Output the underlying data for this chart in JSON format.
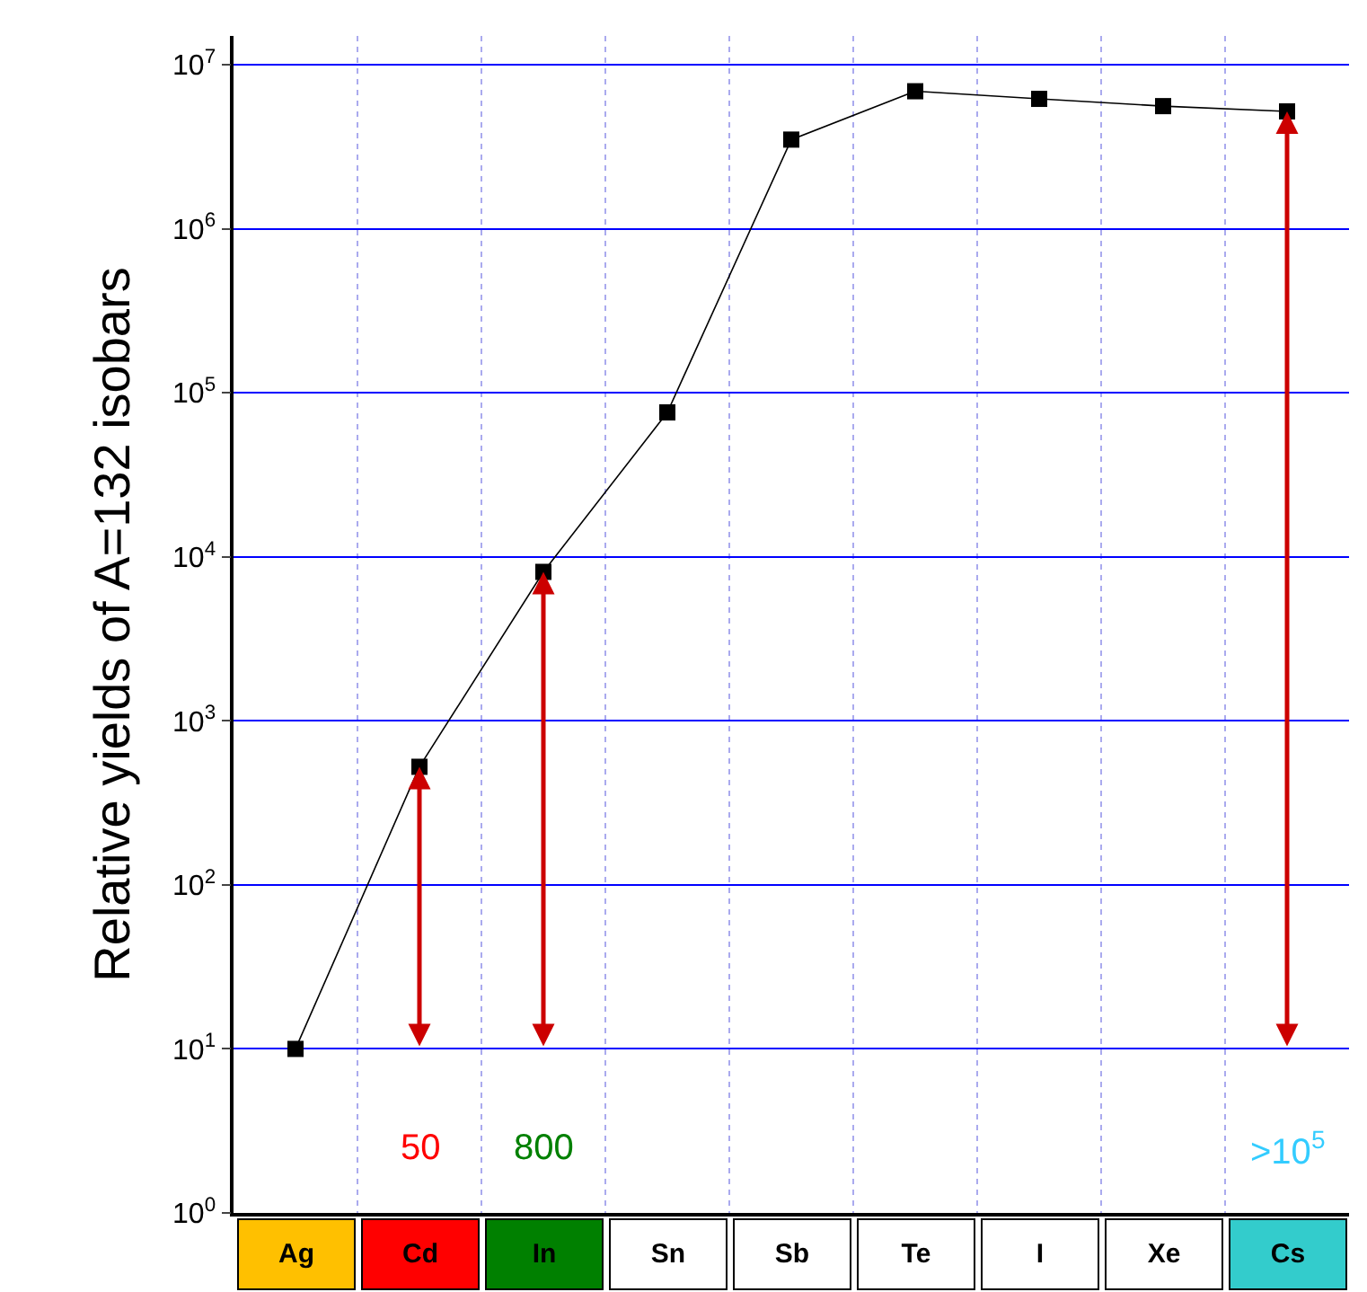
{
  "chart_data": {
    "type": "line",
    "ylabel": "Relative yields of A=132 isobars",
    "categories": [
      "Ag",
      "Cd",
      "In",
      "Sn",
      "Sb",
      "Te",
      "I",
      "Xe",
      "Cs"
    ],
    "series": [
      {
        "color": "#000000",
        "values": [
          10,
          525,
          8100,
          76000,
          3500000,
          6900000,
          6200000,
          5600000,
          5200000
        ]
      }
    ],
    "log": true,
    "ylim": [
      1,
      15000000
    ],
    "yticks": [
      {
        "value": 1,
        "label": "10$^{0}$"
      },
      {
        "value": 10,
        "label": "10$^{1}$"
      },
      {
        "value": 100,
        "label": "10$^{2}$"
      },
      {
        "value": 1000,
        "label": "10$^{3}$"
      },
      {
        "value": 10000,
        "label": "10$^{4}$"
      },
      {
        "value": 100000,
        "label": "10$^{5}$"
      },
      {
        "value": 1000000,
        "label": "10$^{6}$"
      },
      {
        "value": 10000000,
        "label": "10$^{7}$"
      }
    ],
    "grid": true,
    "marker": "square",
    "line_style": "solid",
    "annotations": [
      "50",
      "800",
      ">10$^{5}$"
    ]
  }
}
